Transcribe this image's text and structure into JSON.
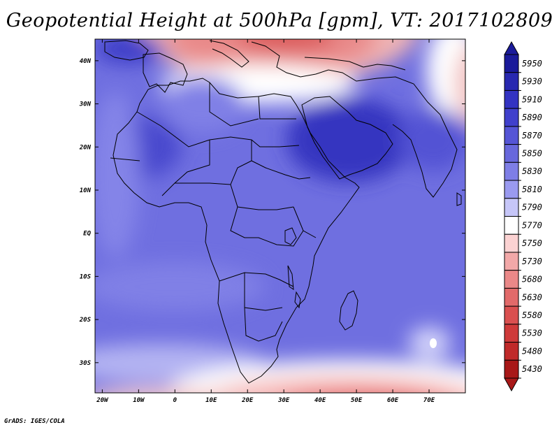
{
  "title": "Geopotential Height at 500hPa [gpm], VT: 2017102809",
  "footer": "GrADS: IGES/COLA",
  "map": {
    "lon_range": [
      -22,
      80
    ],
    "lat_range": [
      -37,
      45
    ],
    "lon_ticks": [
      {
        "lon": -20,
        "label": "20W"
      },
      {
        "lon": -10,
        "label": "10W"
      },
      {
        "lon": 0,
        "label": "0"
      },
      {
        "lon": 10,
        "label": "10E"
      },
      {
        "lon": 20,
        "label": "20E"
      },
      {
        "lon": 30,
        "label": "30E"
      },
      {
        "lon": 40,
        "label": "40E"
      },
      {
        "lon": 50,
        "label": "50E"
      },
      {
        "lon": 60,
        "label": "60E"
      },
      {
        "lon": 70,
        "label": "70E"
      }
    ],
    "lat_ticks": [
      {
        "lat": 40,
        "label": "40N"
      },
      {
        "lat": 30,
        "label": "30N"
      },
      {
        "lat": 20,
        "label": "20N"
      },
      {
        "lat": 10,
        "label": "10N"
      },
      {
        "lat": 0,
        "label": "EQ"
      },
      {
        "lat": -10,
        "label": "10S"
      },
      {
        "lat": -20,
        "label": "20S"
      },
      {
        "lat": -30,
        "label": "30S"
      }
    ]
  },
  "colorbar": {
    "levels": [
      "5950",
      "5930",
      "5910",
      "5890",
      "5870",
      "5850",
      "5830",
      "5810",
      "5790",
      "5770",
      "5750",
      "5730",
      "5680",
      "5630",
      "5580",
      "5530",
      "5480",
      "5430"
    ],
    "colors": [
      "#1a1a9a",
      "#2828b0",
      "#3333c2",
      "#4040cc",
      "#5555d6",
      "#6868dc",
      "#7e7ee6",
      "#9a9af0",
      "#c6c6f8",
      "#ffffff",
      "#fbd2d2",
      "#f2a8a8",
      "#ea8888",
      "#e26a6a",
      "#da5050",
      "#cf3a3a",
      "#c02a2a",
      "#a81818"
    ]
  }
}
